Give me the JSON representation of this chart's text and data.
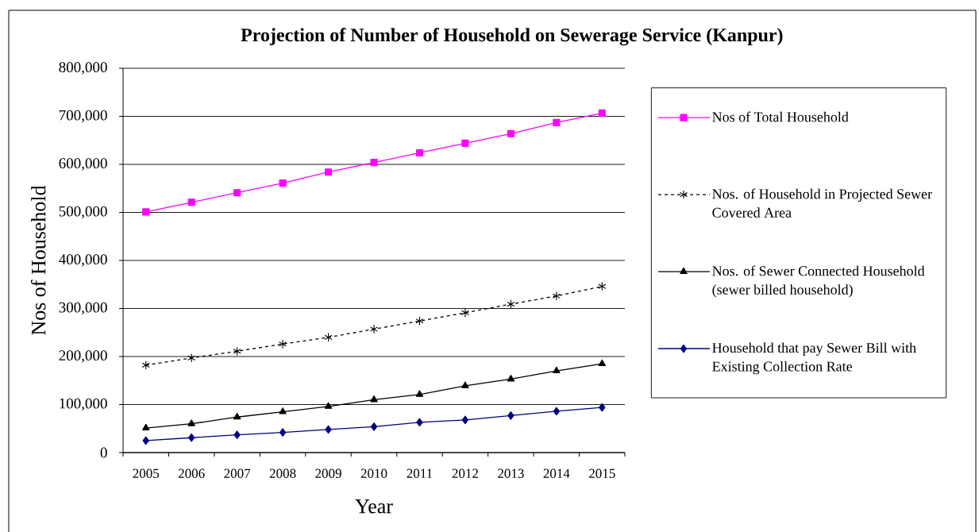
{
  "chart_data": {
    "type": "line",
    "title": "Projection of Number of Household on Sewerage Service (Kanpur)",
    "xlabel": "Year",
    "ylabel": "Nos of Household",
    "categories": [
      "2005",
      "2006",
      "2007",
      "2008",
      "2009",
      "2010",
      "2011",
      "2012",
      "2013",
      "2014",
      "2015"
    ],
    "series": [
      {
        "name": "Nos of Total Household",
        "color": "#ff00ff",
        "marker": "square",
        "line_style": "solid",
        "values": [
          501000,
          521000,
          541000,
          561000,
          584000,
          604000,
          624000,
          644000,
          664000,
          687000,
          707000
        ]
      },
      {
        "name": "Nos. of Household in Projected Sewer Covered Area",
        "color": "#000000",
        "marker": "cross",
        "line_style": "dashed",
        "values": [
          182000,
          197000,
          211000,
          226000,
          240000,
          257000,
          274000,
          291000,
          309000,
          326000,
          346000
        ]
      },
      {
        "name": "Nos. of Sewer Connected Household (sewer billed household)",
        "color": "#000000",
        "marker": "triangle",
        "line_style": "solid",
        "values": [
          51000,
          60000,
          74000,
          85000,
          96000,
          110000,
          121000,
          139000,
          153000,
          170000,
          185000
        ]
      },
      {
        "name": "Household that pay Sewer Bill with Existing Collection Rate",
        "color": "#000080",
        "marker": "diamond",
        "line_style": "solid",
        "values": [
          25000,
          31000,
          37000,
          42000,
          48000,
          54000,
          63000,
          68000,
          77000,
          86000,
          94000
        ]
      }
    ],
    "ylim": [
      0,
      800000
    ],
    "yticks": [
      0,
      {
        "value": 100000,
        "label": "100,000"
      },
      {
        "value": 200000,
        "label": "200,000"
      },
      {
        "value": 300000,
        "label": "300,000"
      },
      {
        "value": 400000,
        "label": "400,000"
      },
      {
        "value": 500000,
        "label": "500,000"
      },
      {
        "value": 600000,
        "label": "600,000"
      },
      {
        "value": 700000,
        "label": "700,000"
      },
      {
        "value": 800000,
        "label": "800,000"
      }
    ],
    "grid": "y",
    "legend": "right"
  }
}
